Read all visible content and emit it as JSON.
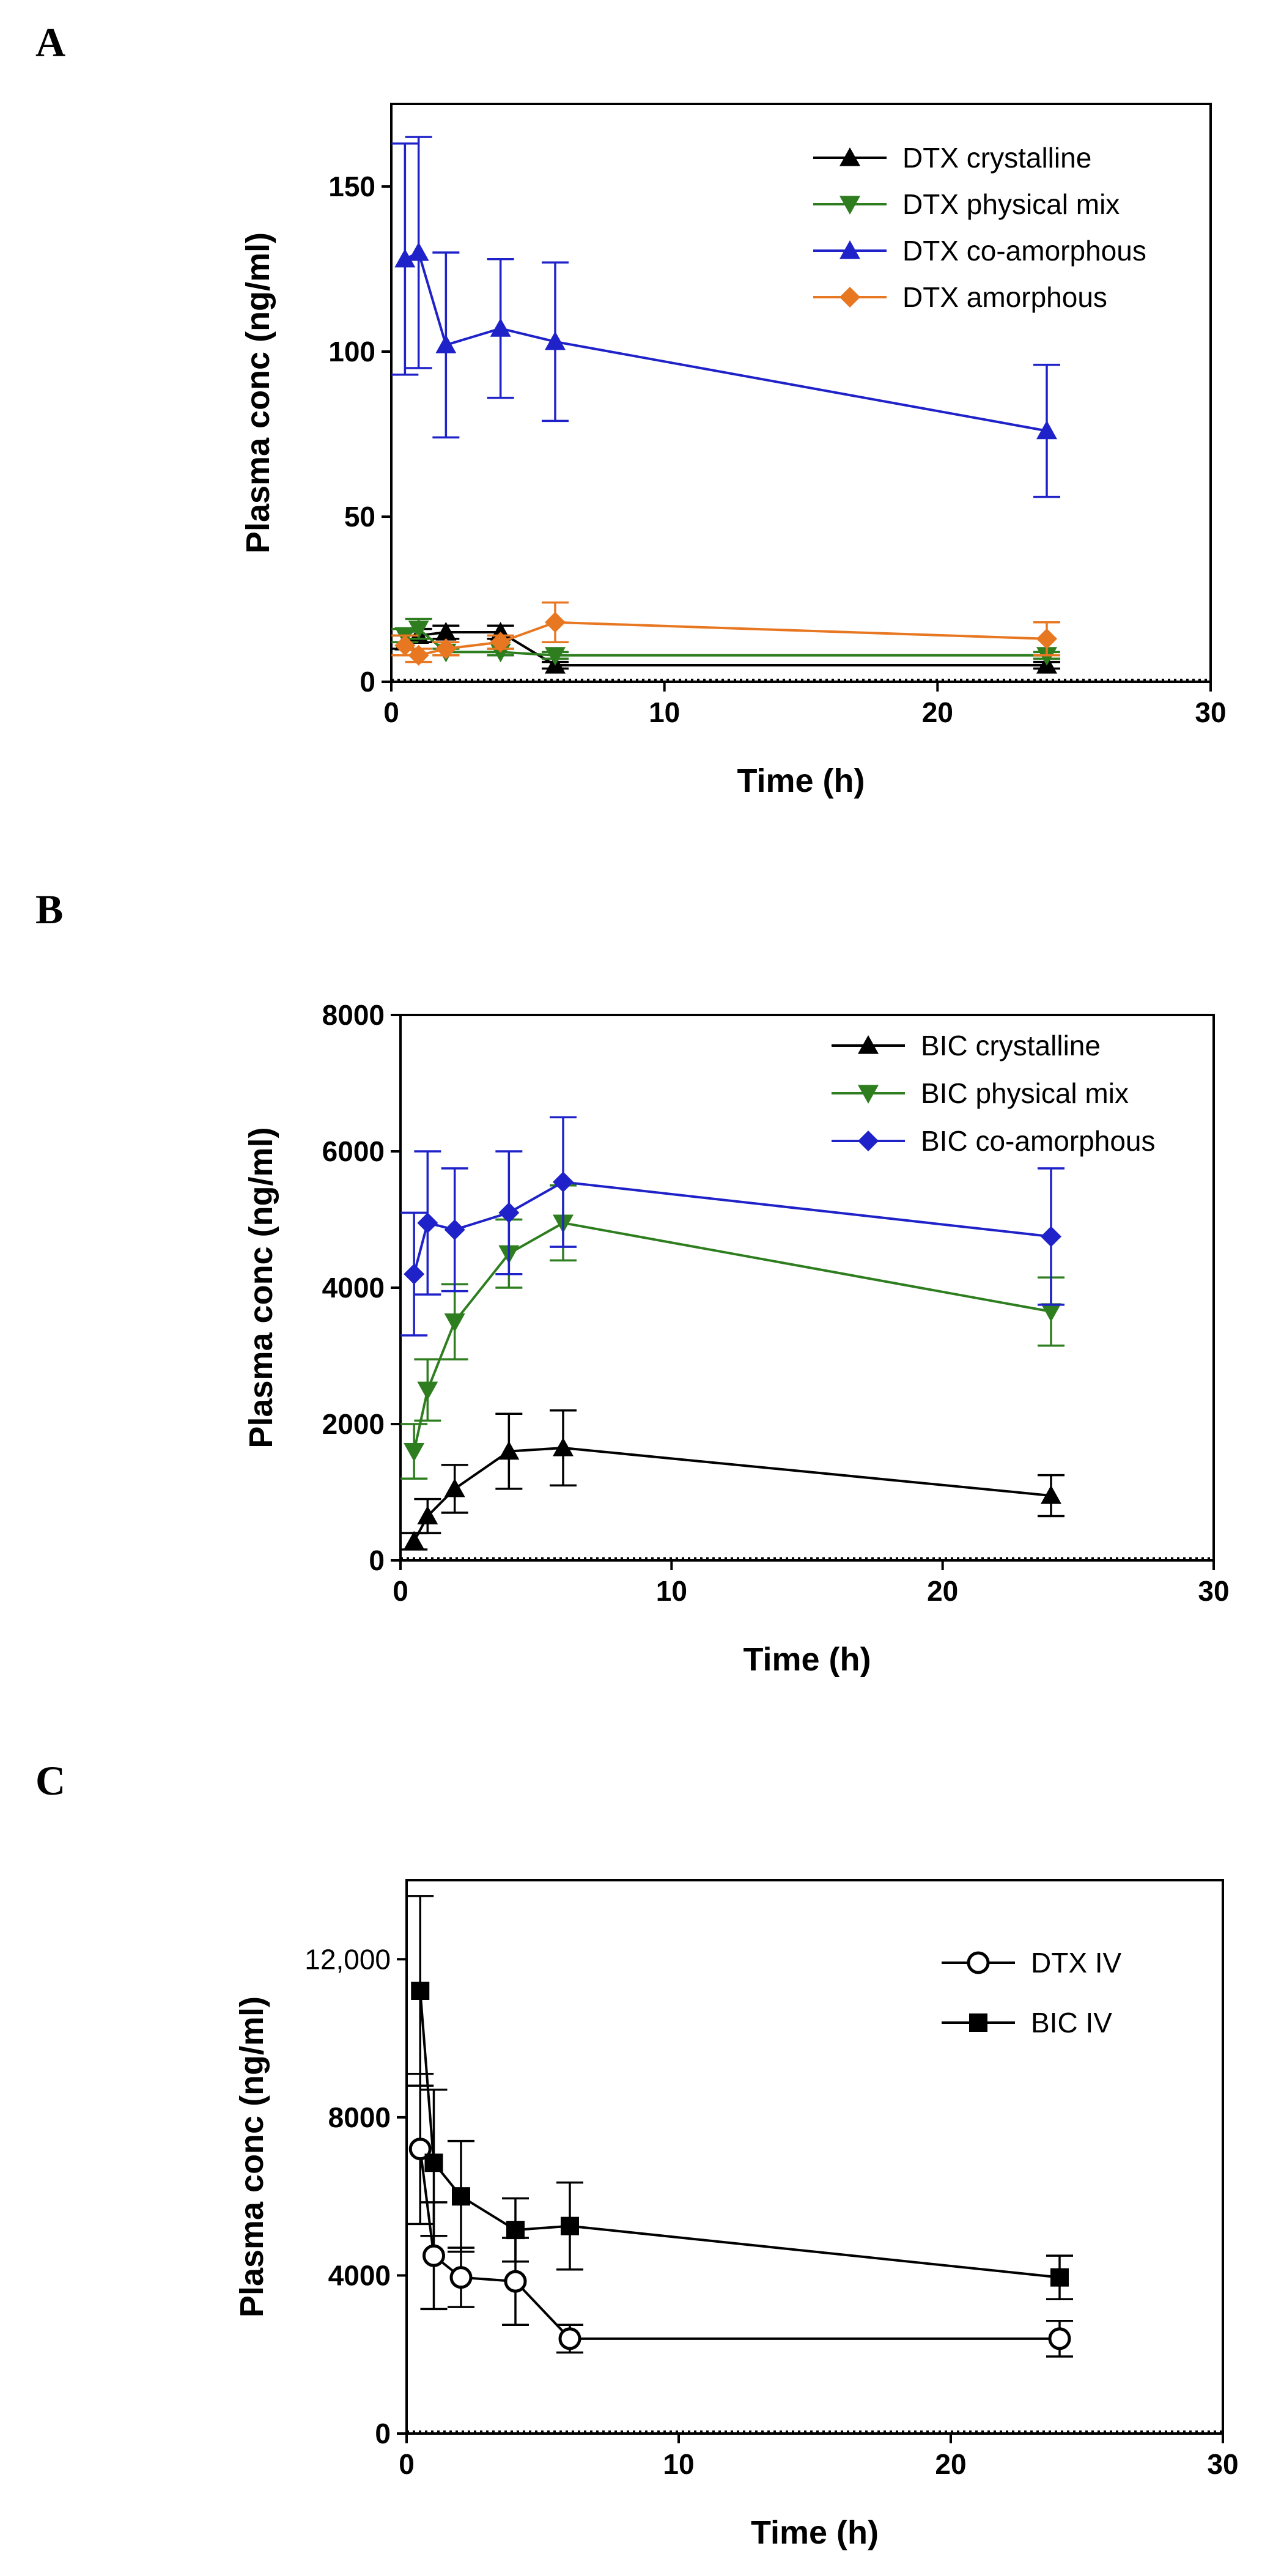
{
  "chart_data": [
    {
      "panel": "A",
      "type": "line",
      "xlabel": "Time (h)",
      "ylabel": "Plasma conc (ng/ml)",
      "xlim": [
        0,
        30
      ],
      "ylim": [
        0,
        175
      ],
      "xticks": [
        0,
        10,
        20,
        30
      ],
      "yticks": [
        0,
        50,
        100,
        150
      ],
      "ytick_labels": [
        "0",
        "50",
        "100",
        "150"
      ],
      "series": [
        {
          "name": "DTX crystalline",
          "color": "#000000",
          "marker": "triangle-up",
          "x": [
            0.5,
            1,
            2,
            4,
            6,
            24
          ],
          "y": [
            12,
            14,
            15,
            15,
            5,
            5
          ],
          "err": [
            2,
            2,
            2,
            2,
            1,
            1
          ]
        },
        {
          "name": "DTX physical mix",
          "color": "#2e7d1f",
          "marker": "triangle-down",
          "x": [
            0.5,
            1,
            2,
            4,
            6,
            24
          ],
          "y": [
            14,
            16,
            9,
            9,
            8,
            8
          ],
          "err": [
            2,
            3,
            1,
            1,
            1,
            1
          ]
        },
        {
          "name": "DTX co-amorphous",
          "color": "#1f22c8",
          "marker": "triangle-up",
          "x": [
            0.5,
            1,
            2,
            4,
            6,
            24
          ],
          "y": [
            128,
            130,
            102,
            107,
            103,
            76
          ],
          "err": [
            35,
            35,
            28,
            21,
            24,
            20
          ]
        },
        {
          "name": "DTX amorphous",
          "color": "#e87722",
          "marker": "diamond",
          "x": [
            0.5,
            1,
            2,
            4,
            6,
            24
          ],
          "y": [
            11,
            8,
            10,
            12,
            18,
            13
          ],
          "err": [
            3,
            2,
            2,
            2,
            6,
            5
          ]
        }
      ]
    },
    {
      "panel": "B",
      "type": "line",
      "xlabel": "Time (h)",
      "ylabel": "Plasma conc (ng/ml)",
      "xlim": [
        0,
        30
      ],
      "ylim": [
        0,
        8000
      ],
      "xticks": [
        0,
        10,
        20,
        30
      ],
      "yticks": [
        0,
        2000,
        4000,
        6000,
        8000
      ],
      "ytick_labels": [
        "0",
        "2000",
        "4000",
        "6000",
        "8000"
      ],
      "series": [
        {
          "name": "BIC crystalline",
          "color": "#000000",
          "marker": "triangle-up",
          "x": [
            0.5,
            1,
            2,
            4,
            6,
            24
          ],
          "y": [
            280,
            650,
            1050,
            1600,
            1650,
            950
          ],
          "err": [
            120,
            250,
            350,
            550,
            550,
            300
          ]
        },
        {
          "name": "BIC physical mix",
          "color": "#2e7d1f",
          "marker": "triangle-down",
          "x": [
            0.5,
            1,
            2,
            4,
            6,
            24
          ],
          "y": [
            1600,
            2500,
            3500,
            4500,
            4950,
            3650
          ],
          "err": [
            400,
            450,
            550,
            500,
            550,
            500
          ]
        },
        {
          "name": "BIC co-amorphous",
          "color": "#1f22c8",
          "marker": "diamond",
          "x": [
            0.5,
            1,
            2,
            4,
            6,
            24
          ],
          "y": [
            4200,
            4950,
            4850,
            5100,
            5550,
            4750
          ],
          "err": [
            900,
            1050,
            900,
            900,
            950,
            1000
          ]
        }
      ]
    },
    {
      "panel": "C",
      "type": "line",
      "xlabel": "Time (h)",
      "ylabel": "Plasma conc (ng/ml)",
      "xlim": [
        0,
        30
      ],
      "ylim": [
        0,
        14000
      ],
      "xticks": [
        0,
        10,
        20,
        30
      ],
      "yticks": [
        0,
        4000,
        8000,
        12000
      ],
      "ytick_labels": [
        "0",
        "4000",
        "8000",
        "12,000"
      ],
      "series": [
        {
          "name": "DTX IV",
          "color": "#000000",
          "marker": "circle-open",
          "x": [
            0.5,
            1,
            2,
            4,
            6,
            24
          ],
          "y": [
            7200,
            4500,
            3950,
            3850,
            2400,
            2400
          ],
          "err": [
            1900,
            1350,
            750,
            1100,
            350,
            450
          ]
        },
        {
          "name": "BIC IV",
          "color": "#000000",
          "marker": "square",
          "x": [
            0.5,
            1,
            2,
            4,
            6,
            24
          ],
          "y": [
            11200,
            6850,
            6000,
            5150,
            5250,
            3950
          ],
          "err": [
            2400,
            1850,
            1400,
            800,
            1100,
            550
          ]
        }
      ]
    }
  ]
}
